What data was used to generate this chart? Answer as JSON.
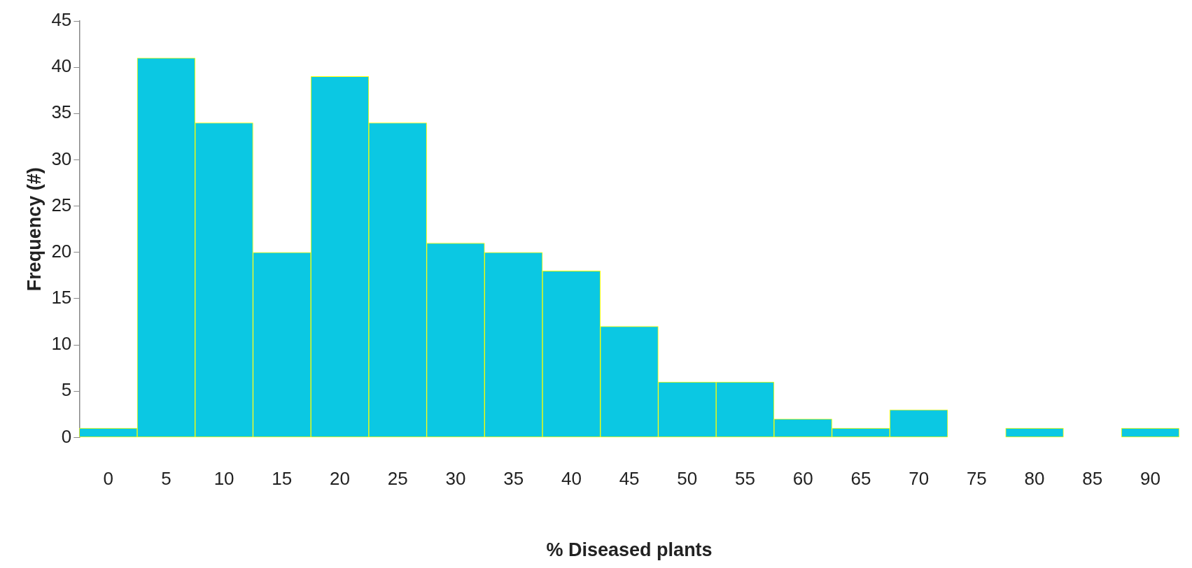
{
  "chart_data": {
    "type": "bar",
    "xlabel": "% Diseased plants",
    "ylabel": "Frequency (#)",
    "categories": [
      "0",
      "5",
      "10",
      "15",
      "20",
      "25",
      "30",
      "35",
      "40",
      "45",
      "50",
      "55",
      "60",
      "65",
      "70",
      "75",
      "80",
      "85",
      "90"
    ],
    "values": [
      1,
      41,
      34,
      20,
      39,
      34,
      21,
      20,
      18,
      12,
      6,
      6,
      2,
      1,
      3,
      0,
      1,
      0,
      1
    ],
    "color": "#0bc8e3",
    "ylim": [
      0,
      45
    ],
    "yticks": [
      0,
      5,
      10,
      15,
      20,
      25,
      30,
      35,
      40,
      45
    ],
    "grid": false,
    "legend": false
  }
}
